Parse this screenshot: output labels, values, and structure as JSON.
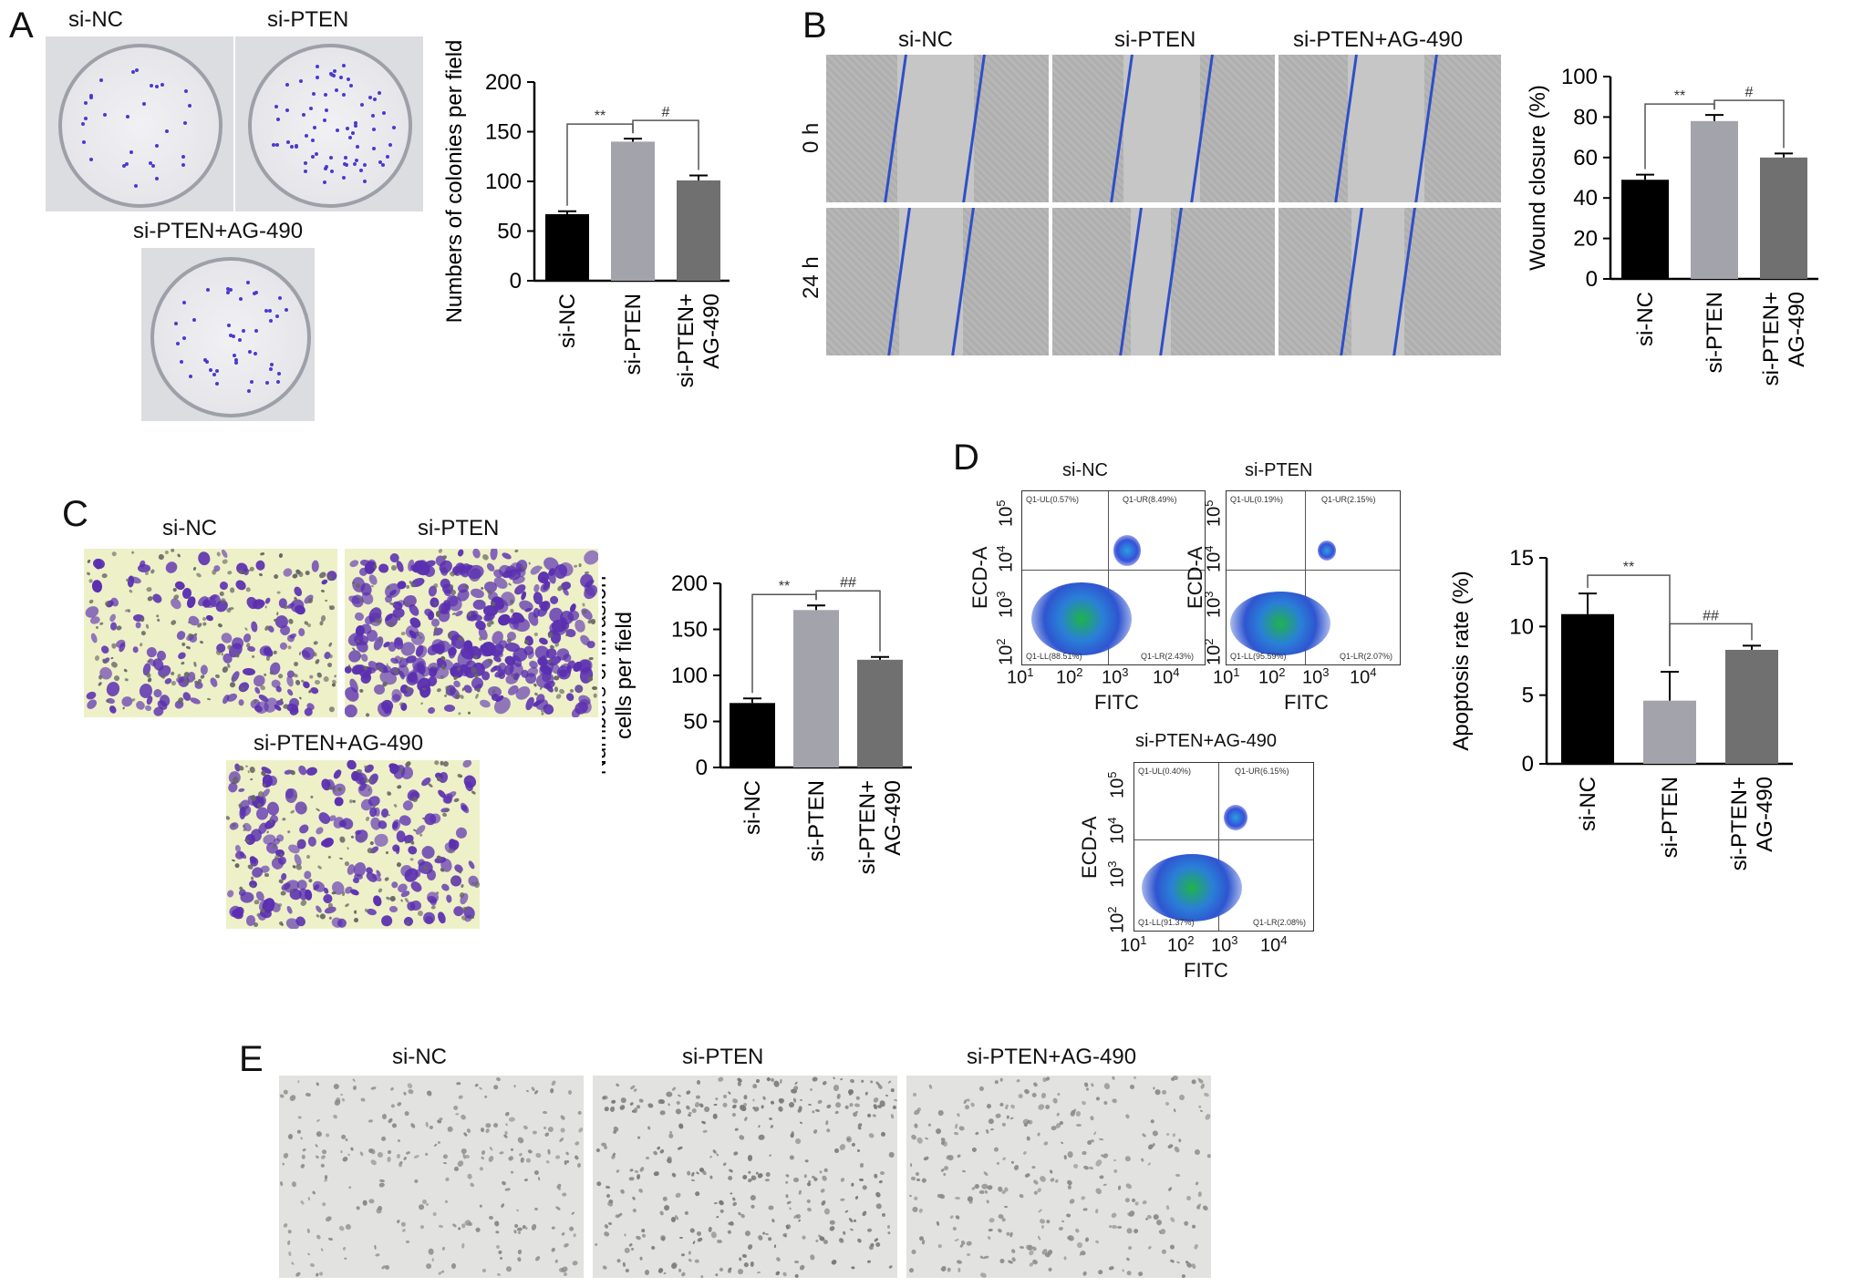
{
  "panels": {
    "A": {
      "letter": "A",
      "photo_labels": [
        "si-NC",
        "si-PTEN",
        "si-PTEN+AG-490"
      ]
    },
    "B": {
      "letter": "B",
      "column_labels": [
        "si-NC",
        "si-PTEN",
        "si-PTEN+AG-490"
      ],
      "row_labels": [
        "0 h",
        "24 h"
      ]
    },
    "C": {
      "letter": "C",
      "photo_labels": [
        "si-NC",
        "si-PTEN",
        "si-PTEN+AG-490"
      ]
    },
    "D": {
      "letter": "D",
      "plot_titles": [
        "si-NC",
        "si-PTEN",
        "si-PTEN+AG-490"
      ],
      "x_axis_label": "FITC",
      "y_axis_label": "ECD-A",
      "tick_labels": [
        "10",
        "10",
        "10",
        "10"
      ],
      "tick_exponents": [
        "1",
        "2",
        "3",
        "4"
      ],
      "y_tick_exponents": [
        "2",
        "3",
        "4",
        "5"
      ],
      "quadrants": [
        {
          "ul": "Q1-UL(0.57%)",
          "ur": "Q1-UR(8.49%)",
          "ll": "Q1-LL(88.51%)",
          "lr": "Q1-LR(2.43%)"
        },
        {
          "ul": "Q1-UL(0.19%)",
          "ur": "Q1-UR(2.15%)",
          "ll": "Q1-LL(95.59%)",
          "lr": "Q1-LR(2.07%)"
        },
        {
          "ul": "Q1-UL(0.40%)",
          "ur": "Q1-UR(6.15%)",
          "ll": "Q1-LL(91.37%)",
          "lr": "Q1-LR(2.08%)"
        }
      ]
    },
    "E": {
      "letter": "E",
      "photo_labels": [
        "si-NC",
        "si-PTEN",
        "si-PTEN+AG-490"
      ]
    }
  },
  "chart_data": [
    {
      "type": "bar",
      "panel": "A",
      "categories": [
        "si-NC",
        "si-PTEN",
        "si-PTEN+\nAG-490"
      ],
      "values": [
        67,
        140,
        101
      ],
      "errors": [
        3,
        3,
        5
      ],
      "ylabel": "Numbers of colonies per field",
      "ylim": [
        0,
        200
      ],
      "yticks": [
        0,
        50,
        100,
        150,
        200
      ],
      "colors": [
        "#000000",
        "#a3a3ab",
        "#707070"
      ],
      "significance": [
        {
          "from": 0,
          "to": 1,
          "label": "**"
        },
        {
          "from": 1,
          "to": 2,
          "label": "#"
        }
      ]
    },
    {
      "type": "bar",
      "panel": "B",
      "categories": [
        "si-NC",
        "si-PTEN",
        "si-PTEN+\nAG-490"
      ],
      "values": [
        49,
        78,
        60
      ],
      "errors": [
        2.5,
        3,
        2
      ],
      "ylabel": "Wound closure (%)",
      "ylim": [
        0,
        100
      ],
      "yticks": [
        0,
        20,
        40,
        60,
        80,
        100
      ],
      "colors": [
        "#000000",
        "#a3a3ab",
        "#707070"
      ],
      "significance": [
        {
          "from": 0,
          "to": 1,
          "label": "**"
        },
        {
          "from": 1,
          "to": 2,
          "label": "#"
        }
      ]
    },
    {
      "type": "bar",
      "panel": "C",
      "categories": [
        "si-NC",
        "si-PTEN",
        "si-PTEN+\nAG-490"
      ],
      "values": [
        70,
        171,
        117
      ],
      "errors": [
        5,
        5,
        3
      ],
      "ylabel": "Numbers of invasion\ncells per field",
      "ylim": [
        0,
        200
      ],
      "yticks": [
        0,
        50,
        100,
        150,
        200
      ],
      "colors": [
        "#000000",
        "#a3a3ab",
        "#707070"
      ],
      "significance": [
        {
          "from": 0,
          "to": 1,
          "label": "**"
        },
        {
          "from": 1,
          "to": 2,
          "label": "##"
        }
      ]
    },
    {
      "type": "bar",
      "panel": "D",
      "categories": [
        "si-NC",
        "si-PTEN",
        "si-PTEN+\nAG-490"
      ],
      "values": [
        10.9,
        4.6,
        8.3
      ],
      "errors": [
        1.5,
        2.1,
        0.3
      ],
      "ylabel": "Apoptosis rate (%)",
      "ylim": [
        0,
        15
      ],
      "yticks": [
        0,
        5,
        10,
        15
      ],
      "colors": [
        "#000000",
        "#a3a3ab",
        "#707070"
      ],
      "significance": [
        {
          "from": 0,
          "to": 1,
          "label": "**"
        },
        {
          "from": 1,
          "to": 2,
          "label": "##"
        }
      ]
    }
  ]
}
